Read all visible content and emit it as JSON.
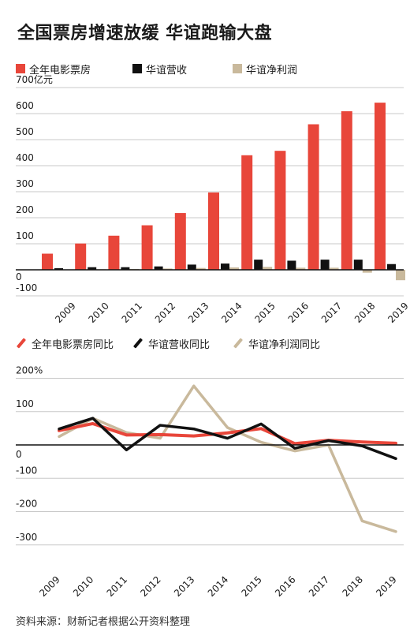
{
  "title": "全国票房增速放缓 华谊跑输大盘",
  "source": "资料来源：财新记者根据公开资料整理",
  "colors": {
    "boxoffice": "#e8463a",
    "revenue": "#111111",
    "profit": "#c9b99c",
    "axis": "#111111",
    "grid": "#c8c8c8"
  },
  "chart_data": [
    {
      "type": "bar",
      "title": "",
      "xlabel": "",
      "ylabel": "亿元",
      "unit_label": "700亿元",
      "ylim": [
        -100,
        700
      ],
      "yticks": [
        "-100",
        "0",
        "100",
        "200",
        "300",
        "400",
        "500",
        "600"
      ],
      "categories": [
        "2009",
        "2010",
        "2011",
        "2012",
        "2013",
        "2014",
        "2015",
        "2016",
        "2017",
        "2018",
        "2019"
      ],
      "legend_position": "top",
      "grid": true,
      "series": [
        {
          "name": "全年电影票房",
          "color": "#e8463a",
          "values": [
            62,
            101,
            131,
            171,
            218,
            297,
            440,
            457,
            559,
            609,
            642
          ]
        },
        {
          "name": "华谊营收",
          "color": "#111111",
          "values": [
            6,
            10,
            10,
            13,
            20,
            24,
            39,
            35,
            39,
            39,
            22
          ]
        },
        {
          "name": "华谊净利润",
          "color": "#c9b99c",
          "values": [
            1,
            2,
            3,
            5,
            7,
            9,
            11,
            8,
            8,
            -11,
            -40
          ]
        }
      ]
    },
    {
      "type": "line",
      "title": "",
      "xlabel": "",
      "ylabel": "%",
      "unit_label": "200%",
      "ylim": [
        -300,
        200
      ],
      "yticks": [
        "-300",
        "-200",
        "-100",
        "0",
        "100"
      ],
      "categories": [
        "2009",
        "2010",
        "2011",
        "2012",
        "2013",
        "2014",
        "2015",
        "2016",
        "2017",
        "2018",
        "2019"
      ],
      "legend_position": "top",
      "grid": true,
      "series": [
        {
          "name": "全年电影票房同比",
          "color": "#e8463a",
          "values": [
            43,
            64,
            30,
            31,
            27,
            36,
            49,
            4,
            14,
            9,
            5
          ]
        },
        {
          "name": "华谊营收同比",
          "color": "#111111",
          "values": [
            48,
            80,
            -15,
            59,
            48,
            20,
            63,
            -10,
            13,
            -3,
            -41
          ]
        },
        {
          "name": "华谊净利润同比",
          "color": "#c9b99c",
          "values": [
            25,
            80,
            37,
            20,
            177,
            52,
            8,
            -18,
            0,
            -228,
            -260
          ]
        }
      ]
    }
  ]
}
